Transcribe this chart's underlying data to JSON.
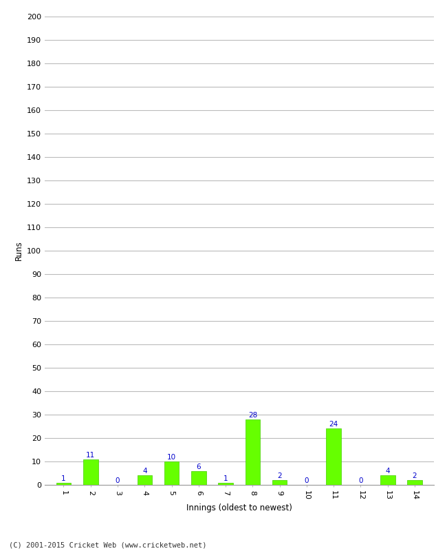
{
  "innings": [
    1,
    2,
    3,
    4,
    5,
    6,
    7,
    8,
    9,
    10,
    11,
    12,
    13,
    14
  ],
  "runs": [
    1,
    11,
    0,
    4,
    10,
    6,
    1,
    28,
    2,
    0,
    24,
    0,
    4,
    2
  ],
  "bar_color": "#66ff00",
  "bar_edge_color": "#44cc00",
  "xlabel": "Innings (oldest to newest)",
  "ylabel": "Runs",
  "ylim": [
    0,
    200
  ],
  "yticks": [
    0,
    10,
    20,
    30,
    40,
    50,
    60,
    70,
    80,
    90,
    100,
    110,
    120,
    130,
    140,
    150,
    160,
    170,
    180,
    190,
    200
  ],
  "label_color": "#0000cc",
  "background_color": "#ffffff",
  "grid_color": "#bbbbbb",
  "footer": "(C) 2001-2015 Cricket Web (www.cricketweb.net)"
}
